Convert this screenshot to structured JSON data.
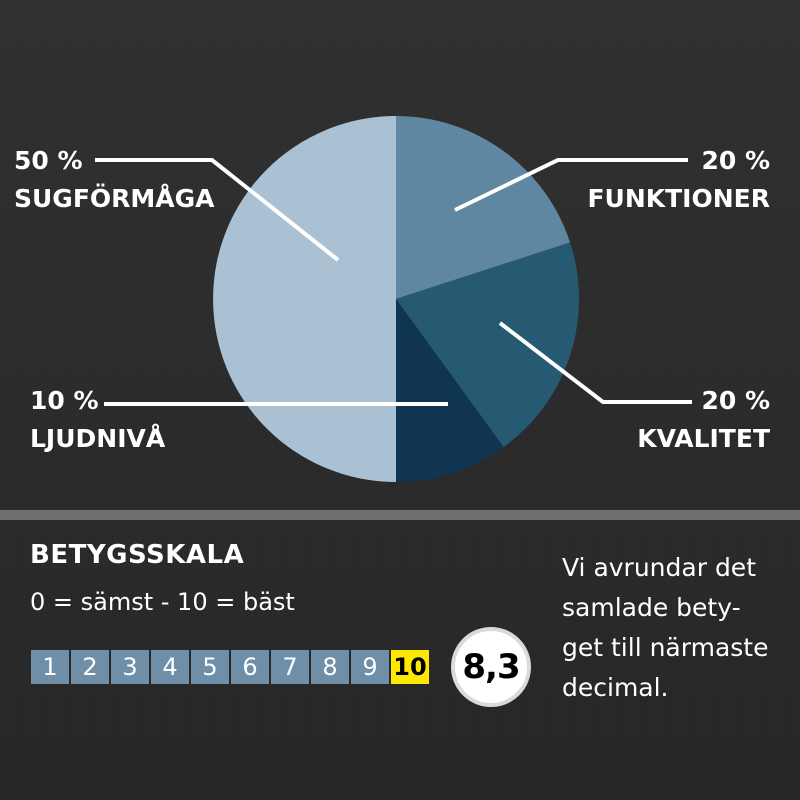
{
  "chart_data": {
    "type": "pie",
    "slices": [
      {
        "name": "SUGFÖRMÅGA",
        "value": 50,
        "label": "50 %",
        "color": "#a9c1d3"
      },
      {
        "name": "FUNKTIONER",
        "value": 20,
        "label": "20 %",
        "color": "#5f87a1"
      },
      {
        "name": "KVALITET",
        "value": 20,
        "label": "20 %",
        "color": "#265a72"
      },
      {
        "name": "LJUDNIVÅ",
        "value": 10,
        "label": "10 %",
        "color": "#0f3552"
      }
    ]
  },
  "scale": {
    "title": "BETYGSSKALA",
    "subtitle": "0 = sämst - 10 = bäst",
    "cells": [
      "1",
      "2",
      "3",
      "4",
      "5",
      "6",
      "7",
      "8",
      "9",
      "10"
    ],
    "active": "10",
    "cell_color": "#6f8fa8",
    "active_color": "#ffe800"
  },
  "score": "8,3",
  "note": {
    "lines": [
      "Vi  avrundar det",
      "samlade bety-",
      "get till närmaste",
      "decimal."
    ]
  }
}
